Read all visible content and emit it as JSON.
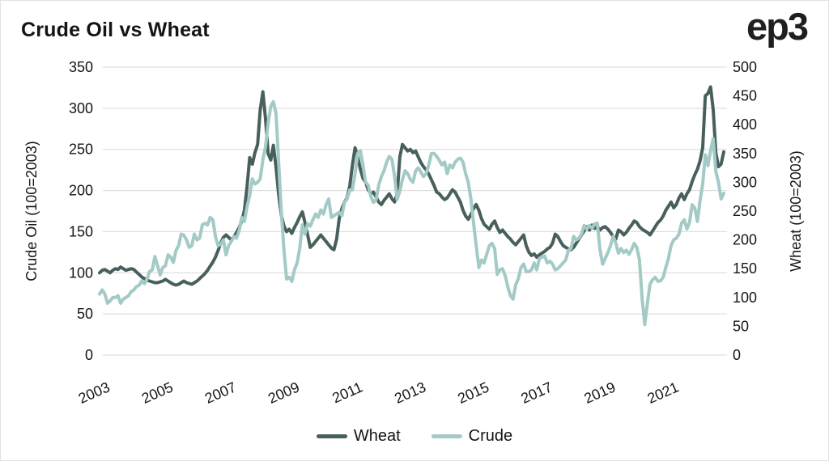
{
  "header": {
    "title": "Crude Oil vs Wheat",
    "logo_text": "ep3"
  },
  "chart_data": {
    "type": "line",
    "title": "Crude Oil vs Wheat",
    "grid": "horizontal",
    "legend_position": "bottom",
    "left_axis": {
      "label": "Crude Oil (100=2003)",
      "range": [
        0,
        350
      ],
      "ticks": [
        0,
        50,
        100,
        150,
        200,
        250,
        300,
        350
      ]
    },
    "right_axis": {
      "label": "Wheat (100=2003)",
      "range": [
        0,
        500
      ],
      "ticks": [
        0,
        50,
        100,
        150,
        200,
        250,
        300,
        350,
        400,
        450,
        500
      ]
    },
    "x_axis": {
      "tick_labels": [
        "2003",
        "2005",
        "2007",
        "2009",
        "2011",
        "2013",
        "2015",
        "2017",
        "2019",
        "2021"
      ],
      "start_year": 2003,
      "months_per_point": 1
    },
    "series": [
      {
        "name": "Wheat",
        "color": "#48605d",
        "plotted_against": "left_scale",
        "monthly_values_from_2003_01": [
          100,
          103,
          104,
          102,
          100,
          103,
          105,
          104,
          107,
          105,
          103,
          104,
          105,
          104,
          101,
          98,
          95,
          93,
          91,
          90,
          89,
          88,
          88,
          89,
          90,
          92,
          90,
          88,
          86,
          85,
          86,
          88,
          90,
          88,
          87,
          86,
          88,
          90,
          93,
          96,
          99,
          103,
          108,
          113,
          119,
          127,
          136,
          143,
          146,
          143,
          140,
          144,
          149,
          155,
          163,
          176,
          205,
          240,
          232,
          246,
          256,
          298,
          320,
          288,
          245,
          237,
          255,
          228,
          195,
          170,
          157,
          150,
          153,
          148,
          155,
          161,
          168,
          174,
          161,
          146,
          131,
          134,
          138,
          142,
          146,
          142,
          138,
          134,
          130,
          128,
          141,
          166,
          178,
          186,
          191,
          206,
          231,
          252,
          241,
          226,
          215,
          210,
          201,
          196,
          198,
          192,
          186,
          183,
          188,
          192,
          196,
          190,
          186,
          196,
          241,
          256,
          252,
          248,
          250,
          246,
          248,
          241,
          234,
          229,
          225,
          220,
          213,
          206,
          198,
          196,
          192,
          189,
          191,
          196,
          201,
          198,
          192,
          186,
          176,
          169,
          165,
          171,
          178,
          183,
          176,
          166,
          159,
          156,
          153,
          159,
          163,
          155,
          149,
          152,
          148,
          144,
          141,
          137,
          134,
          138,
          142,
          146,
          133,
          125,
          121,
          123,
          119,
          122,
          124,
          126,
          129,
          131,
          136,
          147,
          144,
          138,
          133,
          131,
          129,
          128,
          131,
          136,
          141,
          146,
          151,
          156,
          152,
          158,
          154,
          156,
          152,
          155,
          156,
          153,
          149,
          144,
          141,
          152,
          150,
          146,
          149,
          154,
          158,
          163,
          161,
          156,
          153,
          151,
          149,
          146,
          151,
          156,
          161,
          164,
          169,
          176,
          181,
          186,
          179,
          183,
          191,
          196,
          189,
          196,
          201,
          211,
          219,
          226,
          236,
          252,
          315,
          318,
          326,
          298,
          246,
          229,
          232,
          247
        ]
      },
      {
        "name": "Crude",
        "color": "#a3cac6",
        "plotted_against": "right_scale",
        "monthly_values_from_2003_01": [
          106,
          113,
          106,
          90,
          94,
          100,
          100,
          103,
          90,
          97,
          100,
          103,
          110,
          113,
          119,
          121,
          129,
          124,
          132,
          145,
          148,
          171,
          155,
          139,
          152,
          155,
          174,
          170,
          161,
          181,
          190,
          210,
          208,
          200,
          187,
          190,
          210,
          200,
          203,
          226,
          229,
          226,
          239,
          235,
          206,
          190,
          192,
          200,
          174,
          190,
          197,
          206,
          203,
          216,
          239,
          232,
          258,
          277,
          306,
          297,
          300,
          306,
          339,
          361,
          403,
          432,
          440,
          419,
          335,
          248,
          184,
          132,
          135,
          128,
          148,
          160,
          185,
          226,
          210,
          228,
          224,
          235,
          245,
          239,
          252,
          245,
          261,
          271,
          239,
          242,
          245,
          248,
          242,
          265,
          271,
          287,
          287,
          315,
          350,
          355,
          330,
          300,
          295,
          275,
          265,
          270,
          295,
          310,
          320,
          335,
          345,
          340,
          310,
          270,
          285,
          305,
          320,
          315,
          305,
          300,
          320,
          325,
          318,
          310,
          315,
          330,
          350,
          350,
          345,
          338,
          330,
          335,
          315,
          330,
          325,
          335,
          340,
          342,
          335,
          315,
          300,
          271,
          230,
          190,
          152,
          165,
          160,
          175,
          190,
          194,
          185,
          140,
          148,
          150,
          138,
          119,
          103,
          97,
          122,
          133,
          152,
          158,
          145,
          145,
          148,
          160,
          148,
          168,
          170,
          172,
          160,
          163,
          158,
          148,
          150,
          155,
          160,
          165,
          182,
          185,
          206,
          200,
          203,
          210,
          225,
          219,
          225,
          220,
          228,
          229,
          183,
          158,
          168,
          178,
          190,
          206,
          195,
          177,
          185,
          178,
          182,
          175,
          183,
          194,
          187,
          165,
          97,
          53,
          90,
          123,
          131,
          135,
          128,
          129,
          135,
          152,
          168,
          190,
          200,
          203,
          210,
          229,
          235,
          219,
          230,
          261,
          255,
          232,
          268,
          297,
          348,
          329,
          355,
          376,
          319,
          300,
          271,
          281
        ]
      }
    ],
    "legend": [
      {
        "label": "Wheat",
        "color": "#48605d"
      },
      {
        "label": "Crude",
        "color": "#a3cac6"
      }
    ],
    "style": {
      "grid_color": "#d9d9d9",
      "text_color": "#161616",
      "line_width": 4
    }
  }
}
